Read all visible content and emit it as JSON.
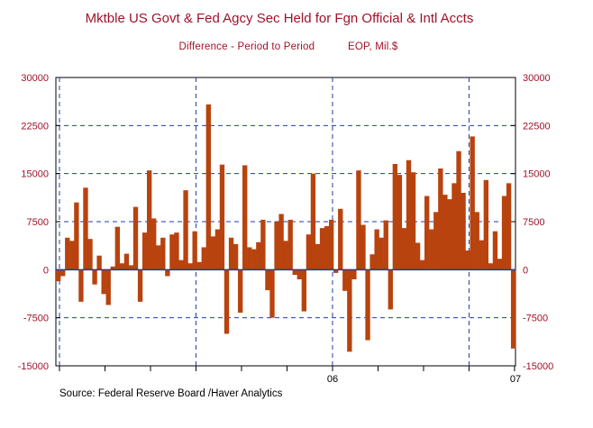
{
  "chart_data": {
    "type": "bar",
    "title": "Mktble US Govt & Fed Agcy Sec Held for Fgn Official & Intl Accts",
    "subtitle_left": "Difference - Period to Period",
    "subtitle_right": "EOP, Mil.$",
    "source": "Source:  Federal Reserve Board /Haver Analytics",
    "ylim": [
      -15000,
      30000
    ],
    "yticks": [
      -15000,
      -7500,
      0,
      7500,
      15000,
      22500,
      30000
    ],
    "ytick_labels": [
      "-15000",
      "-7500",
      "0",
      "7500",
      "15000",
      "22500",
      "30000"
    ],
    "x_labels": [
      {
        "label": "06",
        "index": 60
      },
      {
        "label": "07",
        "index": 120
      }
    ],
    "vertical_gridlines_at_index": [
      0,
      30,
      60,
      90
    ],
    "colors": {
      "bar": "#b8430e",
      "zero_line": "#1f3ea8",
      "grid": "#1f3ea8",
      "text": "#a0122a"
    },
    "values": [
      -1800,
      -1000,
      5000,
      4500,
      10500,
      -5000,
      12800,
      4800,
      -2300,
      2200,
      -3800,
      -5500,
      500,
      6700,
      1000,
      2500,
      700,
      9800,
      -5000,
      5800,
      15500,
      8000,
      3800,
      5000,
      -1000,
      5500,
      5800,
      1500,
      12400,
      1000,
      6000,
      1200,
      3500,
      25800,
      5200,
      6300,
      16400,
      -10000,
      5000,
      4000,
      -6700,
      16300,
      3500,
      3200,
      4300,
      7800,
      -3200,
      -7500,
      7500,
      8700,
      4500,
      7800,
      -800,
      -1500,
      -6500,
      5500,
      15000,
      4000,
      6500,
      6800,
      7800,
      -500,
      9500,
      -3300,
      -12800,
      -1500,
      15500,
      7000,
      -11000,
      2400,
      6300,
      5000,
      7700,
      -6200,
      16500,
      14800,
      6500,
      17100,
      15200,
      4200,
      1500,
      11500,
      6300,
      9000,
      15800,
      11700,
      11000,
      13500,
      18500,
      12000,
      3000,
      20800,
      9000,
      4600,
      14000,
      1000,
      6000,
      1700,
      11500,
      13500,
      -12300
    ]
  }
}
